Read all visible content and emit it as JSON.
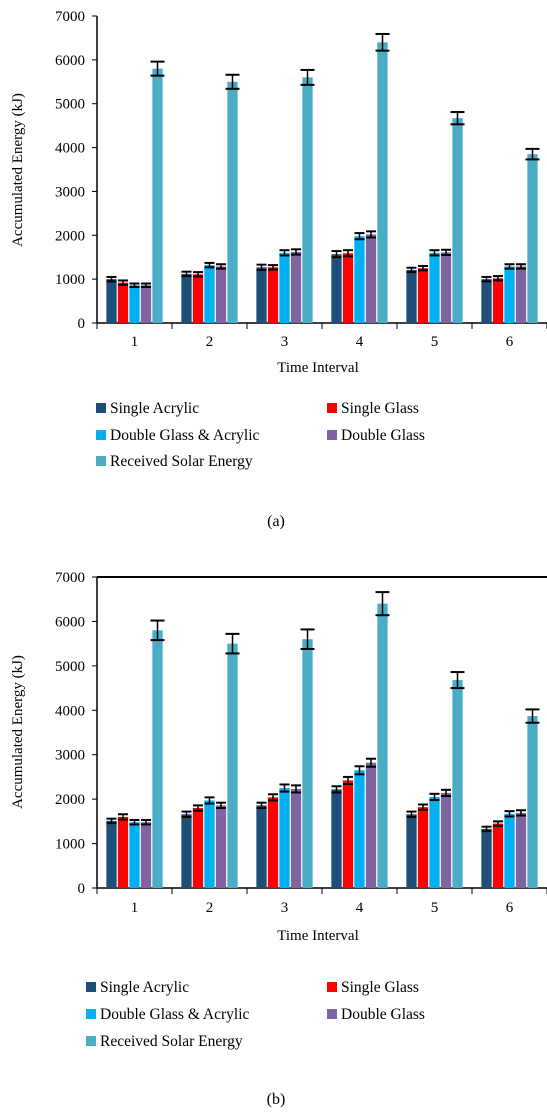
{
  "chart_data": [
    {
      "type": "bar",
      "caption": "(a)",
      "xlabel": "Time Interval",
      "ylabel": "Accumulated Energy  (kJ)",
      "ylim": [
        0,
        7000
      ],
      "yticks": [
        0,
        1000,
        2000,
        3000,
        4000,
        5000,
        6000,
        7000
      ],
      "categories": [
        "1",
        "2",
        "3",
        "4",
        "5",
        "6"
      ],
      "legend_position": "bottom",
      "series": [
        {
          "name": "Single Acrylic",
          "color": "#1f4e79",
          "values": [
            1000,
            1120,
            1270,
            1570,
            1210,
            1000
          ],
          "errors": [
            50,
            50,
            60,
            70,
            50,
            50
          ]
        },
        {
          "name": "Single Glass",
          "color": "#ff0000",
          "values": [
            920,
            1110,
            1270,
            1590,
            1250,
            1020
          ],
          "errors": [
            50,
            50,
            50,
            70,
            50,
            50
          ]
        },
        {
          "name": "Double Glass & Acrylic",
          "color": "#00b0f0",
          "values": [
            860,
            1320,
            1600,
            1980,
            1600,
            1290
          ],
          "errors": [
            40,
            50,
            60,
            70,
            60,
            50
          ]
        },
        {
          "name": "Double Glass",
          "color": "#8064a2",
          "values": [
            860,
            1290,
            1620,
            2020,
            1610,
            1290
          ],
          "errors": [
            40,
            50,
            60,
            70,
            60,
            50
          ]
        },
        {
          "name": "Received Solar Energy",
          "color": "#4bacc6",
          "values": [
            5800,
            5500,
            5600,
            6400,
            4670,
            3850
          ],
          "errors": [
            160,
            160,
            170,
            190,
            140,
            120
          ]
        }
      ]
    },
    {
      "type": "bar",
      "caption": "(b)",
      "xlabel": "Time Interval",
      "ylabel": "Accumulated Energy  (kJ)",
      "ylim": [
        0,
        7000
      ],
      "yticks": [
        0,
        1000,
        2000,
        3000,
        4000,
        5000,
        6000,
        7000
      ],
      "categories": [
        "1",
        "2",
        "3",
        "4",
        "5",
        "6"
      ],
      "legend_position": "bottom",
      "series": [
        {
          "name": "Single Acrylic",
          "color": "#1f4e79",
          "values": [
            1510,
            1660,
            1860,
            2220,
            1660,
            1330
          ],
          "errors": [
            50,
            60,
            60,
            70,
            60,
            50
          ]
        },
        {
          "name": "Single Glass",
          "color": "#ff0000",
          "values": [
            1600,
            1800,
            2040,
            2420,
            1820,
            1450
          ],
          "errors": [
            60,
            60,
            70,
            80,
            60,
            50
          ]
        },
        {
          "name": "Double Glass & Acrylic",
          "color": "#00b0f0",
          "values": [
            1480,
            1970,
            2250,
            2650,
            2050,
            1670
          ],
          "errors": [
            50,
            70,
            80,
            90,
            70,
            60
          ]
        },
        {
          "name": "Double Glass",
          "color": "#8064a2",
          "values": [
            1480,
            1860,
            2230,
            2820,
            2140,
            1690
          ],
          "errors": [
            50,
            60,
            80,
            90,
            70,
            60
          ]
        },
        {
          "name": "Received Solar Energy",
          "color": "#4bacc6",
          "values": [
            5800,
            5500,
            5600,
            6400,
            4680,
            3870
          ],
          "errors": [
            220,
            220,
            220,
            260,
            180,
            150
          ]
        }
      ]
    }
  ]
}
